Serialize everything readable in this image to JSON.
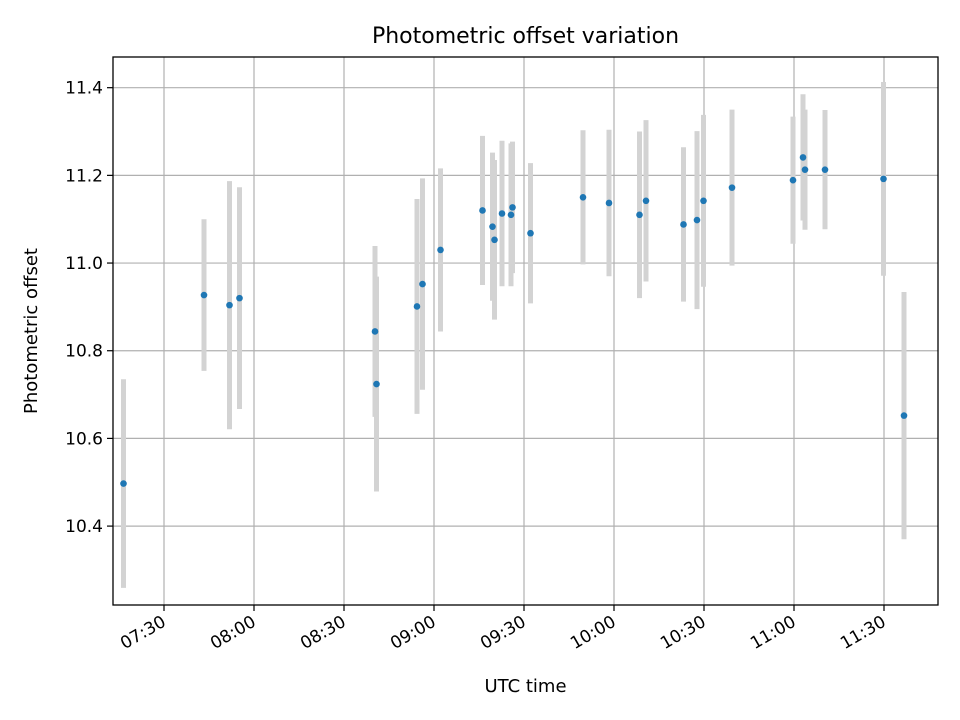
{
  "colors": {
    "point": "#1f77b4",
    "errorbar": "#d3d3d3"
  },
  "chart_data": {
    "type": "scatter",
    "title": "Photometric offset variation",
    "xlabel": "UTC time",
    "ylabel": "Photometric offset",
    "x_unit": "UTC time",
    "xlim": [
      "07:13",
      "11:48"
    ],
    "ylim": [
      10.22,
      11.47
    ],
    "grid": true,
    "x_ticks": [
      "07:30",
      "08:00",
      "08:30",
      "09:00",
      "09:30",
      "10:00",
      "10:30",
      "11:00",
      "11:30"
    ],
    "y_ticks": [
      "10.4",
      "10.6",
      "10.8",
      "11.0",
      "11.2",
      "11.4"
    ],
    "points": [
      {
        "x": "07:16:30",
        "y": 10.497,
        "yerr": 0.238
      },
      {
        "x": "07:43:20",
        "y": 10.927,
        "yerr": 0.173
      },
      {
        "x": "07:51:50",
        "y": 10.904,
        "yerr": 0.283
      },
      {
        "x": "07:55:10",
        "y": 10.92,
        "yerr": 0.253
      },
      {
        "x": "08:40:20",
        "y": 10.844,
        "yerr": 0.195
      },
      {
        "x": "08:40:50",
        "y": 10.724,
        "yerr": 0.245
      },
      {
        "x": "08:54:20",
        "y": 10.901,
        "yerr": 0.245
      },
      {
        "x": "08:56:10",
        "y": 10.952,
        "yerr": 0.241
      },
      {
        "x": "09:02:10",
        "y": 11.03,
        "yerr": 0.186
      },
      {
        "x": "09:16:10",
        "y": 11.12,
        "yerr": 0.17
      },
      {
        "x": "09:19:30",
        "y": 11.083,
        "yerr": 0.169
      },
      {
        "x": "09:20:10",
        "y": 11.053,
        "yerr": 0.182
      },
      {
        "x": "09:22:40",
        "y": 11.113,
        "yerr": 0.166
      },
      {
        "x": "09:25:40",
        "y": 11.11,
        "yerr": 0.163
      },
      {
        "x": "09:26:10",
        "y": 11.127,
        "yerr": 0.15
      },
      {
        "x": "09:32:10",
        "y": 11.068,
        "yerr": 0.16
      },
      {
        "x": "09:49:40",
        "y": 11.15,
        "yerr": 0.153
      },
      {
        "x": "09:58:20",
        "y": 11.137,
        "yerr": 0.167
      },
      {
        "x": "10:08:30",
        "y": 11.11,
        "yerr": 0.19
      },
      {
        "x": "10:10:40",
        "y": 11.142,
        "yerr": 0.184
      },
      {
        "x": "10:23:10",
        "y": 11.088,
        "yerr": 0.176
      },
      {
        "x": "10:27:40",
        "y": 11.098,
        "yerr": 0.203
      },
      {
        "x": "10:29:50",
        "y": 11.142,
        "yerr": 0.196
      },
      {
        "x": "10:39:20",
        "y": 11.172,
        "yerr": 0.178
      },
      {
        "x": "10:59:40",
        "y": 11.189,
        "yerr": 0.145
      },
      {
        "x": "11:03:00",
        "y": 11.241,
        "yerr": 0.144
      },
      {
        "x": "11:03:40",
        "y": 11.213,
        "yerr": 0.137
      },
      {
        "x": "11:10:20",
        "y": 11.213,
        "yerr": 0.136
      },
      {
        "x": "11:29:50",
        "y": 11.192,
        "yerr": 0.221
      },
      {
        "x": "11:36:40",
        "y": 10.652,
        "yerr": 0.282
      }
    ]
  }
}
